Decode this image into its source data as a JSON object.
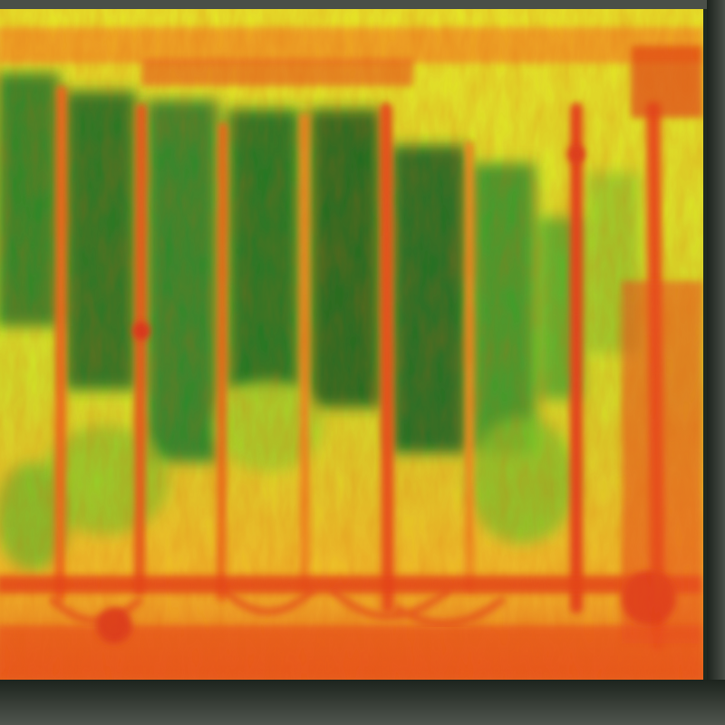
{
  "image": {
    "description_type": "aerial NDVI-style vegetation index heatmap of a crop field",
    "palette": {
      "high": "#1f7a2a",
      "mid_high": "#5fbf2a",
      "mid": "#d8ea2a",
      "mid_low": "#f5b02a",
      "low": "#e8401c"
    },
    "crop_columns": 8
  }
}
